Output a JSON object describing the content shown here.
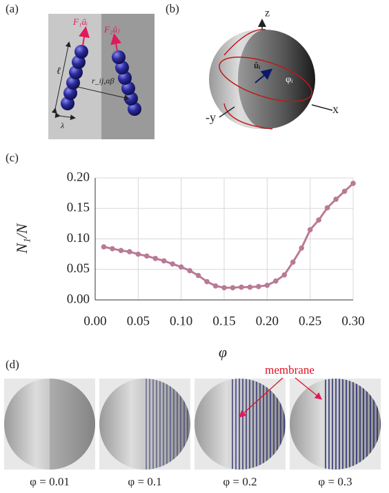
{
  "panels": {
    "a": {
      "label": "(a)",
      "force1": "F₁ûᵢ",
      "force2": "F₂ûⱼ",
      "length": "ℓ",
      "distance": "r_ij,αβ",
      "width": "λ"
    },
    "b": {
      "label": "(b)",
      "z_axis": "z",
      "y_axis": "-y",
      "x_axis": "x",
      "vector": "ûᵢ",
      "angle": "φᵢ"
    },
    "d": {
      "label": "(d)",
      "annotation": "membrane",
      "captions": [
        "φ = 0.01",
        "φ = 0.1",
        "φ = 0.2",
        "φ = 0.3"
      ]
    }
  },
  "chart_data": {
    "type": "line",
    "panel_label": "(c)",
    "x_label": "φ",
    "y_label": "N₁/N",
    "x": [
      0.01,
      0.02,
      0.03,
      0.04,
      0.05,
      0.06,
      0.07,
      0.08,
      0.09,
      0.1,
      0.11,
      0.12,
      0.13,
      0.14,
      0.15,
      0.16,
      0.17,
      0.18,
      0.19,
      0.2,
      0.21,
      0.22,
      0.23,
      0.24,
      0.25,
      0.26,
      0.27,
      0.28,
      0.29,
      0.3
    ],
    "series": [
      {
        "name": "N₁/N",
        "color": "#b97a95",
        "values": [
          0.087,
          0.084,
          0.081,
          0.079,
          0.075,
          0.072,
          0.068,
          0.064,
          0.059,
          0.054,
          0.048,
          0.04,
          0.03,
          0.023,
          0.02,
          0.02,
          0.021,
          0.021,
          0.022,
          0.024,
          0.031,
          0.041,
          0.062,
          0.085,
          0.115,
          0.131,
          0.151,
          0.165,
          0.178,
          0.191
        ]
      }
    ],
    "xlim": [
      0,
      0.3
    ],
    "ylim": [
      0,
      0.2
    ],
    "xticks": [
      {
        "value": 0,
        "label": "0.00"
      },
      {
        "value": 0.05,
        "label": "0.05"
      },
      {
        "value": 0.1,
        "label": "0.10"
      },
      {
        "value": 0.15,
        "label": "0.15"
      },
      {
        "value": 0.2,
        "label": "0.20"
      },
      {
        "value": 0.25,
        "label": "0.25"
      },
      {
        "value": 0.3,
        "label": "0.30"
      }
    ],
    "yticks": [
      {
        "value": 0,
        "label": "0.00"
      },
      {
        "value": 0.05,
        "label": "0.05"
      },
      {
        "value": 0.1,
        "label": "0.10"
      },
      {
        "value": 0.15,
        "label": "0.15"
      },
      {
        "value": 0.2,
        "label": "0.20"
      }
    ],
    "grid": true
  }
}
